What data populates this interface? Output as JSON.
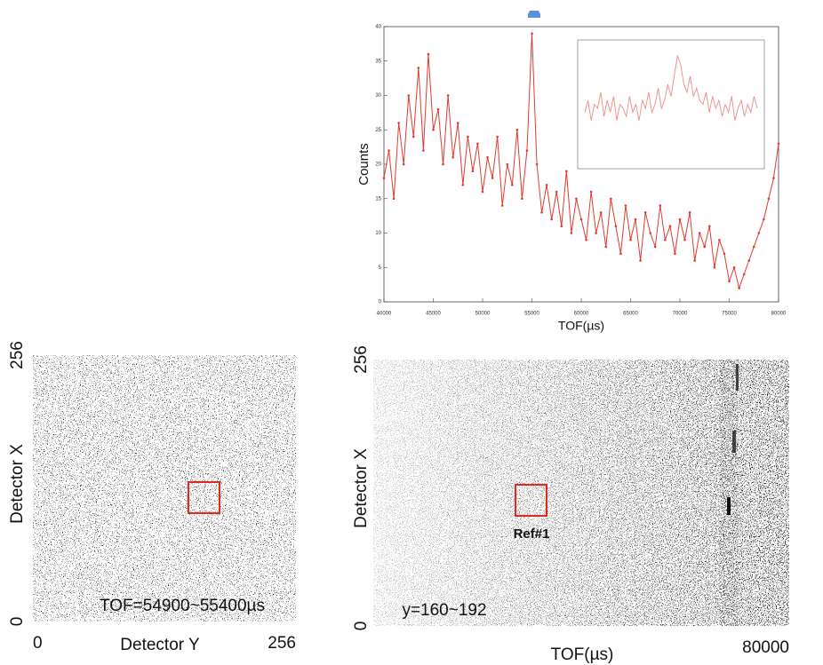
{
  "chart_data": [
    {
      "type": "line",
      "xlabel": "TOF(µs)",
      "ylabel": "Counts",
      "color": "#e03a2f",
      "x": [
        40000,
        40500,
        41000,
        41500,
        42000,
        42500,
        43000,
        43500,
        44000,
        44500,
        45000,
        45500,
        46000,
        46500,
        47000,
        47500,
        48000,
        48500,
        49000,
        49500,
        50000,
        50500,
        51000,
        51500,
        52000,
        52500,
        53000,
        53500,
        54000,
        54500,
        55000,
        55500,
        56000,
        56500,
        57000,
        57500,
        58000,
        58500,
        59000,
        59500,
        60000,
        60500,
        61000,
        61500,
        62000,
        62500,
        63000,
        63500,
        64000,
        64500,
        65000,
        65500,
        66000,
        66500,
        67000,
        67500,
        68000,
        68500,
        69000,
        69500,
        70000,
        70500,
        71000,
        71500,
        72000,
        72500,
        73000,
        73500,
        74000,
        74500,
        75000,
        75500,
        76000,
        76500,
        77000,
        77500,
        78000,
        78500,
        79000,
        79500,
        80000
      ],
      "values": [
        18,
        22,
        15,
        26,
        20,
        30,
        24,
        34,
        22,
        36,
        25,
        28,
        20,
        30,
        21,
        26,
        17,
        24,
        19,
        23,
        16,
        21,
        18,
        24,
        14,
        20,
        17,
        25,
        15,
        22,
        39,
        20,
        13,
        17,
        12,
        16,
        11,
        19,
        10,
        15,
        12,
        9,
        16,
        10,
        13,
        8,
        15,
        11,
        7,
        14,
        9,
        12,
        6,
        13,
        10,
        8,
        14,
        9,
        11,
        7,
        12,
        9,
        13,
        6,
        10,
        8,
        11,
        5,
        9,
        7,
        3,
        5,
        2,
        4,
        6,
        8,
        10,
        12,
        15,
        18,
        23
      ],
      "xlim": [
        40000,
        80000
      ],
      "xticks": [
        40000,
        45000,
        50000,
        55000,
        60000,
        65000,
        70000,
        75000,
        80000
      ],
      "ylim": [
        0,
        40
      ],
      "yticks": [
        0,
        5,
        10,
        15,
        20,
        25,
        30,
        35,
        40
      ]
    },
    {
      "type": "inset-line",
      "color": "#f08a80",
      "values": [
        24,
        27,
        22,
        26,
        25,
        29,
        23,
        27,
        24,
        28,
        22,
        26,
        25,
        23,
        28,
        24,
        26,
        22,
        27,
        25,
        29,
        24,
        26,
        30,
        25,
        27,
        31,
        28,
        33,
        38,
        36,
        31,
        29,
        33,
        28,
        30,
        27,
        26,
        29,
        24,
        28,
        25,
        27,
        23,
        26,
        24,
        28,
        22,
        25,
        27,
        23,
        26,
        24,
        28,
        25
      ],
      "ylim": [
        10,
        42
      ]
    },
    {
      "type": "image",
      "xlabel": "Detector Y",
      "ylabel": "Detector X",
      "annotation": "TOF=54900~55400µs",
      "xlim": [
        0,
        256
      ],
      "xticks": [
        0,
        256
      ],
      "ylim": [
        0,
        256
      ],
      "yticks": [
        0,
        256
      ]
    },
    {
      "type": "image",
      "xlabel": "TOF(µs)",
      "ylabel": "Detector X",
      "annotation": "y=160~192",
      "box_label": "Ref#1",
      "xlim": [
        0,
        80000
      ],
      "xticks": [
        80000
      ],
      "ylim": [
        0,
        256
      ],
      "yticks": [
        0,
        256
      ]
    }
  ]
}
